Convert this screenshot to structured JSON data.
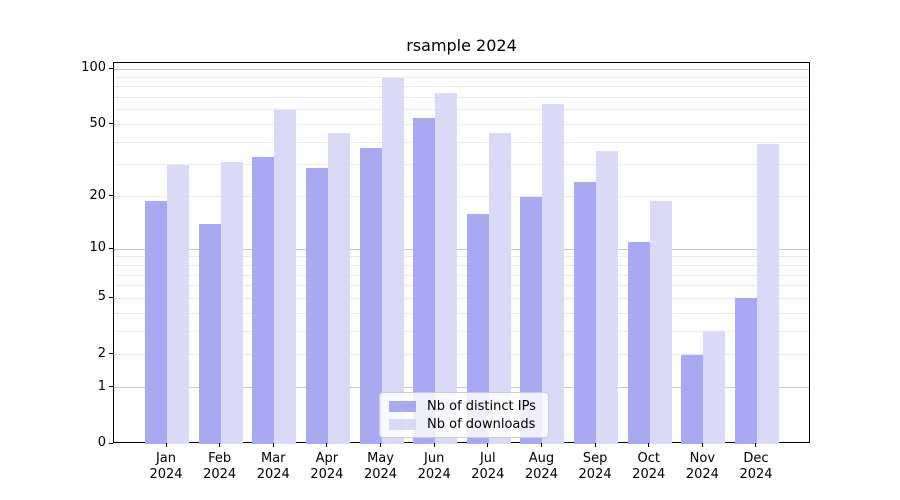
{
  "chart_data": {
    "type": "bar",
    "title": "rsample 2024",
    "categories": [
      "Jan 2024",
      "Feb 2024",
      "Mar 2024",
      "Apr 2024",
      "May 2024",
      "Jun 2024",
      "Jul 2024",
      "Aug 2024",
      "Sep 2024",
      "Oct 2024",
      "Nov 2024",
      "Dec 2024"
    ],
    "series": [
      {
        "name": "Nb of distinct IPs",
        "color": "#a8a8f3",
        "values": [
          19,
          14,
          33,
          29,
          37,
          54,
          16,
          20,
          24,
          11,
          2,
          5
        ]
      },
      {
        "name": "Nb of downloads",
        "color": "#dadaf8",
        "values": [
          30,
          31,
          60,
          45,
          89,
          74,
          45,
          65,
          36,
          19,
          3,
          39
        ]
      }
    ],
    "xlabel": "",
    "ylabel": "",
    "yscale": "log1p",
    "ylim": [
      0,
      100
    ],
    "yticks": [
      100,
      50,
      20,
      10,
      5,
      2,
      1,
      0
    ],
    "major_gridlines": [
      1,
      10,
      100
    ],
    "minor_gridlines": [
      2,
      3,
      4,
      5,
      6,
      7,
      8,
      9,
      20,
      30,
      40,
      50,
      60,
      70,
      80,
      90
    ],
    "grid": "horizontal",
    "legend_position": "lower-center-inside"
  },
  "colors": {
    "background": "#ffffff",
    "axis": "#000000",
    "grid_major": "#c6c6c6",
    "grid_minor": "#e9e9e9",
    "legend_border": "#cccccc",
    "text": "#000000"
  }
}
